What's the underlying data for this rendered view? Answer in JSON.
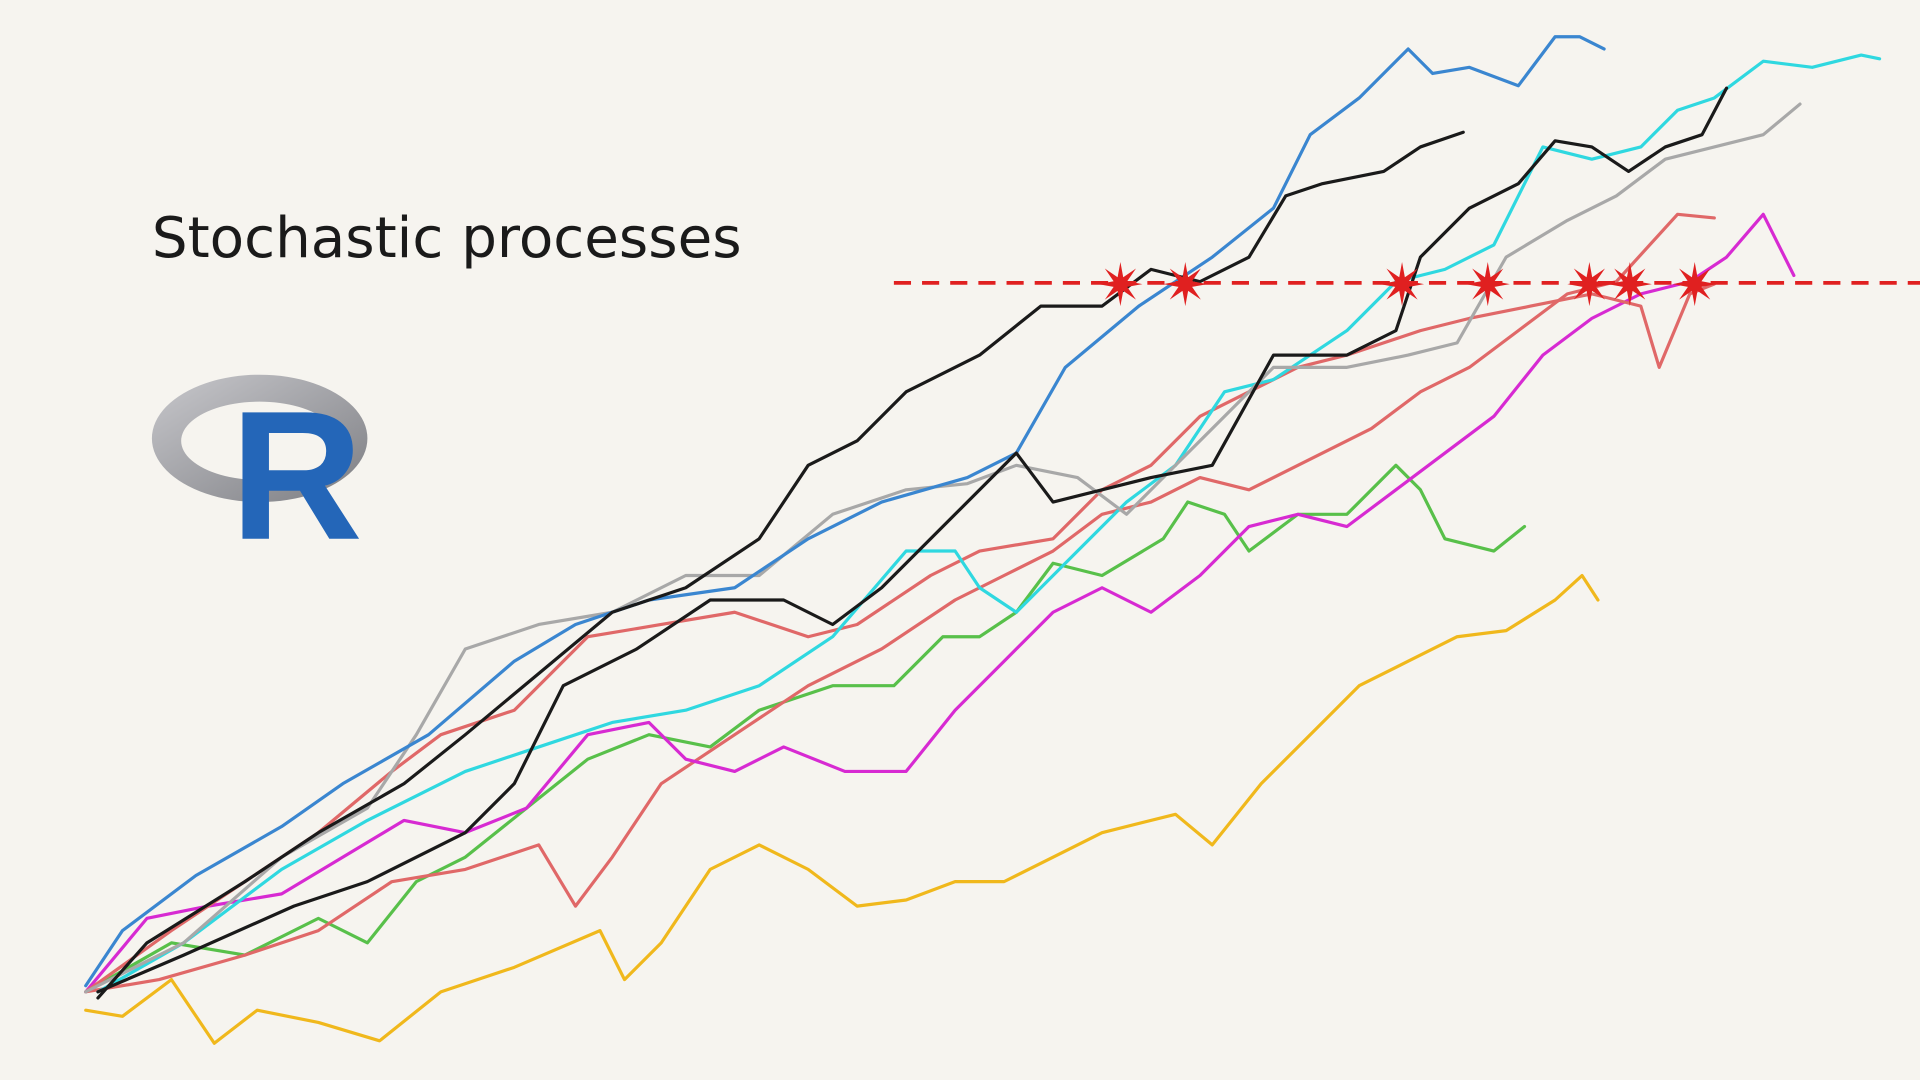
{
  "title": "Stochastic processes",
  "logo": {
    "letter": "R"
  }
}
